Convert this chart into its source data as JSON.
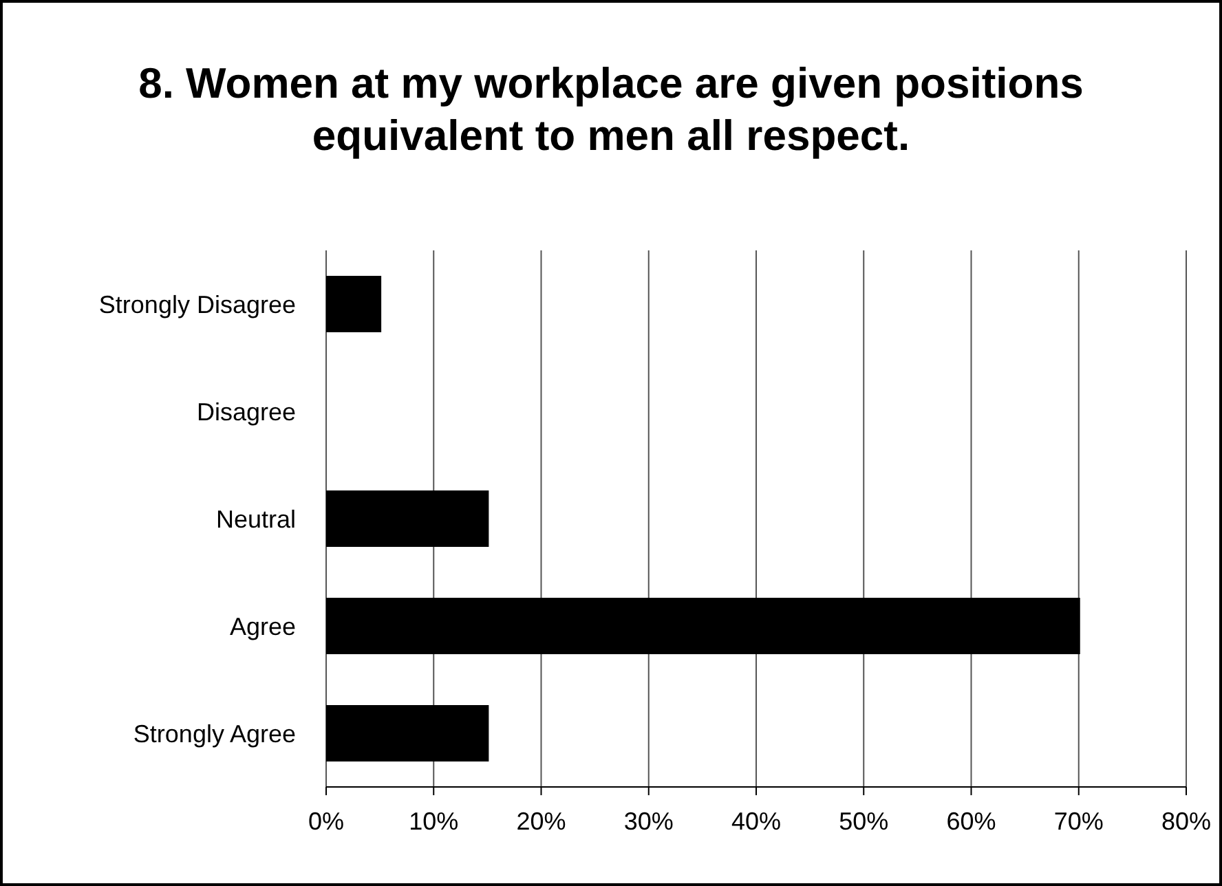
{
  "chart_data": {
    "type": "bar",
    "orientation": "horizontal",
    "title": "8. Women at my workplace are given positions equivalent to men all respect.",
    "categories": [
      "Strongly Disagree",
      "Disagree",
      "Neutral",
      "Agree",
      "Strongly Agree"
    ],
    "values": [
      5,
      0,
      15,
      70,
      15
    ],
    "color": "#000000",
    "xlim": [
      0,
      80
    ],
    "xticks": [
      {
        "value": 0,
        "label": "0%"
      },
      {
        "value": 10,
        "label": "10%"
      },
      {
        "value": 20,
        "label": "20%"
      },
      {
        "value": 30,
        "label": "30%"
      },
      {
        "value": 40,
        "label": "40%"
      },
      {
        "value": 50,
        "label": "50%"
      },
      {
        "value": 60,
        "label": "60%"
      },
      {
        "value": 70,
        "label": "70%"
      },
      {
        "value": 80,
        "label": "80%"
      }
    ],
    "grid": "x"
  }
}
